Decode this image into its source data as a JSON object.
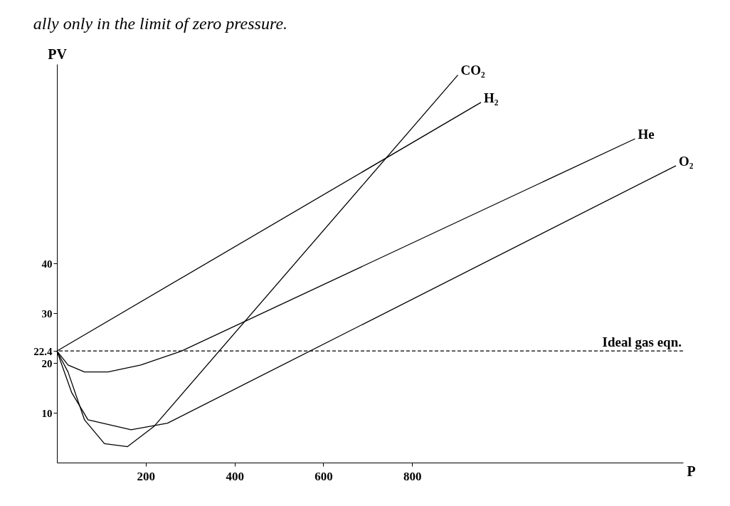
{
  "chart_data": {
    "type": "line",
    "xlabel": "P",
    "ylabel": "PV",
    "xlim": [
      0,
      1410
    ],
    "ylim": [
      0,
      80
    ],
    "xticks": [
      200,
      400,
      600,
      800
    ],
    "yticks": [
      10,
      20,
      22.4,
      30,
      40
    ],
    "grid": false,
    "annotations": [
      "ally only in the limit of zero pressure."
    ],
    "ref_lines": [
      {
        "axis": "y",
        "value": 22.4,
        "label": "Ideal gas eqn.",
        "line_style": "dashed"
      }
    ],
    "series": [
      {
        "name": "CO₂",
        "color": "#000000",
        "x": [
          0,
          25,
          62,
          107,
          159,
          219,
          903
        ],
        "values": [
          22.4,
          18.2,
          8.6,
          3.8,
          3.2,
          7.3,
          77.8
        ]
      },
      {
        "name": "H₂",
        "color": "#000000",
        "x": [
          0,
          955
        ],
        "values": [
          22.4,
          72.3
        ]
      },
      {
        "name": "He",
        "color": "#000000",
        "x": [
          0,
          25,
          62,
          115,
          189,
          278,
          1302
        ],
        "values": [
          22.4,
          19.6,
          18.2,
          18.2,
          19.6,
          22.3,
          65
        ]
      },
      {
        "name": "O₂",
        "color": "#000000",
        "x": [
          0,
          33,
          70,
          167,
          249,
          1394
        ],
        "values": [
          22.4,
          14.1,
          8.6,
          6.6,
          7.9,
          59.6
        ]
      }
    ]
  }
}
